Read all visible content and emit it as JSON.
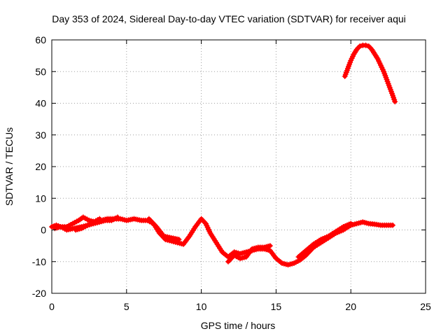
{
  "chart_data": {
    "type": "scatter",
    "title": "Day 353 of 2024, Sidereal Day-to-day VTEC variation (SDTVAR) for receiver aqui",
    "xlabel": "GPS time / hours",
    "ylabel": "SDTVAR / TECUs",
    "xlim": [
      0,
      25
    ],
    "ylim": [
      -20,
      60
    ],
    "xticks": [
      0,
      5,
      10,
      15,
      20,
      25
    ],
    "yticks": [
      -20,
      -10,
      0,
      10,
      20,
      30,
      40,
      50,
      60
    ],
    "grid": true,
    "marker": "plus",
    "series": [
      {
        "name": "SDTVAR",
        "color": "#ff0000",
        "segments": [
          {
            "x": [
              0.0,
              0.3,
              0.6,
              1.0,
              1.4,
              1.8,
              2.1,
              2.5,
              2.9,
              3.3,
              3.7,
              4.2,
              4.6,
              5.0,
              5.5,
              6.0,
              6.4,
              6.8,
              7.2,
              7.6,
              8.0,
              8.4,
              8.8,
              9.2,
              9.6,
              10.0,
              10.3,
              10.6,
              11.0,
              11.4,
              11.8,
              12.2,
              12.6,
              13.0,
              13.4,
              13.8,
              14.2,
              14.6,
              15.0,
              15.4,
              15.8,
              16.2,
              16.6,
              17.0,
              17.5,
              18.0,
              18.5,
              19.0,
              19.5,
              20.0,
              20.4,
              20.8,
              21.2,
              21.6,
              22.0,
              22.4,
              22.8
            ],
            "y": [
              1.0,
              1.5,
              1.0,
              1.0,
              2.0,
              3.0,
              4.0,
              3.0,
              2.5,
              3.0,
              3.5,
              3.5,
              3.5,
              3.0,
              3.5,
              3.0,
              3.0,
              2.0,
              -1.0,
              -3.0,
              -3.5,
              -4.0,
              -4.5,
              -2.0,
              1.0,
              3.5,
              2.0,
              -1.0,
              -4.0,
              -7.0,
              -8.5,
              -7.0,
              -7.5,
              -7.0,
              -6.5,
              -6.0,
              -6.0,
              -6.5,
              -9.0,
              -10.5,
              -11.0,
              -10.5,
              -9.5,
              -8.0,
              -5.5,
              -4.0,
              -2.5,
              -1.0,
              0.0,
              1.5,
              2.0,
              2.5,
              2.0,
              1.8,
              1.5,
              1.5,
              1.5
            ]
          },
          {
            "x": [
              0.2,
              0.6,
              1.0,
              1.5,
              2.0,
              2.4,
              2.8,
              3.2,
              3.6,
              4.0,
              4.4
            ],
            "y": [
              0.5,
              1.0,
              0.0,
              0.5,
              1.0,
              1.5,
              2.0,
              2.5,
              3.0,
              3.0,
              4.0
            ]
          },
          {
            "x": [
              1.6,
              2.0,
              2.4,
              2.8,
              3.2
            ],
            "y": [
              0.0,
              0.5,
              1.5,
              2.5,
              3.5
            ]
          },
          {
            "x": [
              6.5,
              7.0,
              7.5,
              8.0,
              8.5
            ],
            "y": [
              3.5,
              1.0,
              -2.0,
              -2.5,
              -3.0
            ]
          },
          {
            "x": [
              11.8,
              12.2,
              12.6,
              13.0,
              13.4,
              13.8,
              14.2,
              14.6
            ],
            "y": [
              -10.0,
              -8.0,
              -9.0,
              -8.5,
              -6.0,
              -5.5,
              -5.5,
              -5.0
            ]
          },
          {
            "x": [
              16.5,
              17.0,
              17.5,
              18.0,
              18.5,
              19.0,
              19.5,
              20.0
            ],
            "y": [
              -8.5,
              -6.5,
              -4.5,
              -3.0,
              -2.0,
              -0.5,
              1.0,
              2.0
            ]
          },
          {
            "x": [
              19.6,
              19.8,
              20.0,
              20.2,
              20.4,
              20.6,
              20.8,
              21.0,
              21.2,
              21.4,
              21.6,
              21.8,
              22.0,
              22.2,
              22.4,
              22.6,
              22.8,
              22.95
            ],
            "y": [
              48.5,
              51.0,
              53.5,
              55.5,
              57.0,
              58.0,
              58.3,
              58.3,
              58.0,
              57.0,
              55.5,
              54.0,
              52.0,
              50.0,
              47.5,
              45.0,
              42.5,
              40.5
            ]
          }
        ]
      }
    ]
  }
}
